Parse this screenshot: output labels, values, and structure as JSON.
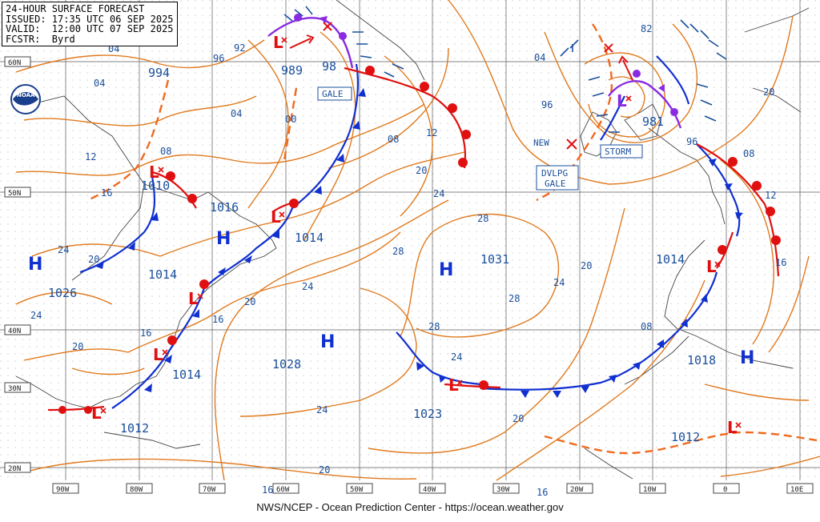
{
  "header": {
    "line1": "24-HOUR SURFACE FORECAST",
    "line2": "ISSUED: 17:35 UTC 06 SEP 2025",
    "line3": "VALID:  12:00 UTC 07 SEP 2025",
    "line4": "FCSTR:  Byrd"
  },
  "logo_text": "NOAA",
  "footer": "NWS/NCEP - Ocean Prediction Center - https://ocean.weather.gov",
  "colors": {
    "isobar": "#e07a1e",
    "front_cold": "#1030d0",
    "front_warm": "#e01010",
    "occluded": "#8a2be2",
    "label": "#1a4f9c",
    "grid": "#5a5a5a"
  },
  "lat_labels": [
    "60N",
    "50N",
    "40N",
    "30N",
    "20N"
  ],
  "lon_labels": [
    "90W",
    "80W",
    "70W",
    "60W",
    "50W",
    "40W",
    "30W",
    "20W",
    "10W",
    "0",
    "10E"
  ],
  "isobar_labels": [
    "04",
    "04",
    "08",
    "12",
    "16",
    "24",
    "20",
    "24",
    "20",
    "92",
    "96",
    "00",
    "04",
    "08",
    "12",
    "20",
    "24",
    "28",
    "28",
    "28",
    "24",
    "24",
    "20",
    "16",
    "16",
    "20",
    "24",
    "20",
    "16",
    "04",
    "96",
    "82",
    "96",
    "08",
    "12",
    "16",
    "20",
    "20",
    "16",
    "24",
    "28",
    "08"
  ],
  "pressure_centers": [
    {
      "type": "H",
      "value": "1026"
    },
    {
      "type": "L",
      "value": "1010"
    },
    {
      "type": "L",
      "value": "1016"
    },
    {
      "type": "H",
      "value": ""
    },
    {
      "type": "L",
      "value": "989"
    },
    {
      "type": "L",
      "value": "1014"
    },
    {
      "type": "H",
      "value": "1031"
    },
    {
      "type": "H",
      "value": "1028"
    },
    {
      "type": "L",
      "value": "1023"
    },
    {
      "type": "L",
      "value": "981"
    },
    {
      "type": "L",
      "value": "1014"
    },
    {
      "type": "H",
      "value": "1018"
    },
    {
      "type": "L",
      "value": "1012"
    },
    {
      "type": "L",
      "value": "1014"
    },
    {
      "type": "L",
      "value": "1014"
    },
    {
      "type": "L",
      "value": "1012"
    }
  ],
  "other_numbers": [
    "994",
    "98",
    "96",
    "82",
    "1014"
  ],
  "warnings": [
    "GALE",
    "STORM",
    "DVLPG\nGALE"
  ],
  "new_label": "NEW"
}
